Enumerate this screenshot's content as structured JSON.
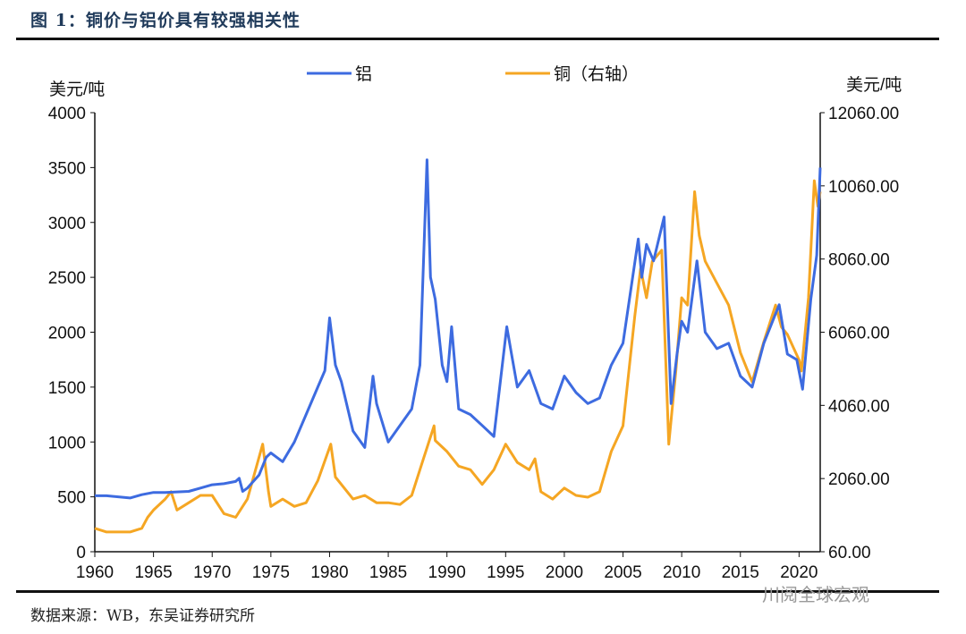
{
  "figure": {
    "title": "图 1：铜价与铝价具有较强相关性",
    "source": "数据来源：WB，东吴证券研究所",
    "watermark": "川阅全球宏观"
  },
  "chart_data": {
    "type": "line",
    "left_axis_label": "美元/吨",
    "right_axis_label": "美元/吨",
    "ylim_left": [
      0,
      4000
    ],
    "ylim_right": [
      60,
      12060
    ],
    "xlim": [
      1960,
      2021.8
    ],
    "x_ticks": [
      "1960",
      "1965",
      "1970",
      "1975",
      "1980",
      "1985",
      "1990",
      "1995",
      "2000",
      "2005",
      "2010",
      "2015",
      "2020"
    ],
    "y_ticks_left": [
      "0",
      "500",
      "1000",
      "1500",
      "2000",
      "2500",
      "3000",
      "3500",
      "4000"
    ],
    "y_ticks_right": [
      "60.00",
      "2060.00",
      "4060.00",
      "6060.00",
      "8060.00",
      "10060.00",
      "12060.00"
    ],
    "grid": false,
    "legend_position": "top",
    "series": [
      {
        "name": "铝",
        "axis": "left",
        "color": "#3d6be0",
        "points": [
          [
            1960,
            510
          ],
          [
            1961,
            510
          ],
          [
            1962,
            500
          ],
          [
            1963,
            490
          ],
          [
            1964,
            520
          ],
          [
            1965,
            540
          ],
          [
            1966,
            540
          ],
          [
            1967,
            545
          ],
          [
            1968,
            550
          ],
          [
            1969,
            580
          ],
          [
            1970,
            610
          ],
          [
            1971,
            620
          ],
          [
            1972,
            640
          ],
          [
            1972.3,
            670
          ],
          [
            1972.6,
            550
          ],
          [
            1973,
            580
          ],
          [
            1974,
            700
          ],
          [
            1974.6,
            860
          ],
          [
            1975,
            900
          ],
          [
            1976,
            820
          ],
          [
            1977,
            1000
          ],
          [
            1978,
            1250
          ],
          [
            1979,
            1500
          ],
          [
            1979.6,
            1650
          ],
          [
            1980,
            2130
          ],
          [
            1980.5,
            1700
          ],
          [
            1981,
            1550
          ],
          [
            1982,
            1100
          ],
          [
            1983,
            950
          ],
          [
            1983.7,
            1600
          ],
          [
            1984,
            1350
          ],
          [
            1985,
            1000
          ],
          [
            1986,
            1150
          ],
          [
            1987,
            1300
          ],
          [
            1987.7,
            1700
          ],
          [
            1988.3,
            3570
          ],
          [
            1988.6,
            2500
          ],
          [
            1989,
            2300
          ],
          [
            1989.6,
            1700
          ],
          [
            1990,
            1550
          ],
          [
            1990.4,
            2050
          ],
          [
            1991,
            1300
          ],
          [
            1992,
            1250
          ],
          [
            1993,
            1150
          ],
          [
            1994,
            1050
          ],
          [
            1995.1,
            2050
          ],
          [
            1995.5,
            1800
          ],
          [
            1996,
            1500
          ],
          [
            1997,
            1650
          ],
          [
            1998,
            1350
          ],
          [
            1999,
            1300
          ],
          [
            2000,
            1600
          ],
          [
            2001,
            1450
          ],
          [
            2002,
            1350
          ],
          [
            2003,
            1400
          ],
          [
            2004,
            1700
          ],
          [
            2005,
            1900
          ],
          [
            2006.3,
            2850
          ],
          [
            2006.6,
            2500
          ],
          [
            2007,
            2800
          ],
          [
            2007.6,
            2650
          ],
          [
            2008.5,
            3050
          ],
          [
            2009.1,
            1350
          ],
          [
            2009.6,
            1800
          ],
          [
            2010,
            2100
          ],
          [
            2010.5,
            2000
          ],
          [
            2011.3,
            2650
          ],
          [
            2012,
            2000
          ],
          [
            2013,
            1850
          ],
          [
            2014,
            1900
          ],
          [
            2015,
            1600
          ],
          [
            2016,
            1500
          ],
          [
            2017,
            1900
          ],
          [
            2018.3,
            2250
          ],
          [
            2019,
            1800
          ],
          [
            2019.8,
            1750
          ],
          [
            2020.3,
            1480
          ],
          [
            2021,
            2300
          ],
          [
            2021.5,
            2700
          ],
          [
            2021.8,
            3500
          ]
        ]
      },
      {
        "name": "铜（右轴）",
        "axis": "right",
        "color": "#f5a623",
        "points": [
          [
            1960,
            700
          ],
          [
            1961,
            600
          ],
          [
            1963,
            600
          ],
          [
            1964,
            700
          ],
          [
            1964.5,
            1000
          ],
          [
            1965,
            1200
          ],
          [
            1966,
            1500
          ],
          [
            1966.5,
            1700
          ],
          [
            1967,
            1200
          ],
          [
            1968,
            1400
          ],
          [
            1969,
            1600
          ],
          [
            1970,
            1600
          ],
          [
            1971,
            1100
          ],
          [
            1972,
            1000
          ],
          [
            1973,
            1500
          ],
          [
            1974.3,
            3000
          ],
          [
            1974.8,
            1700
          ],
          [
            1975,
            1300
          ],
          [
            1976,
            1500
          ],
          [
            1977,
            1300
          ],
          [
            1978,
            1400
          ],
          [
            1979,
            2000
          ],
          [
            1980.1,
            3000
          ],
          [
            1980.5,
            2100
          ],
          [
            1981,
            1900
          ],
          [
            1982,
            1500
          ],
          [
            1983,
            1600
          ],
          [
            1984,
            1400
          ],
          [
            1985,
            1400
          ],
          [
            1986,
            1350
          ],
          [
            1987,
            1600
          ],
          [
            1988,
            2600
          ],
          [
            1988.9,
            3500
          ],
          [
            1989,
            3100
          ],
          [
            1990,
            2800
          ],
          [
            1991,
            2400
          ],
          [
            1992,
            2300
          ],
          [
            1993,
            1900
          ],
          [
            1994,
            2300
          ],
          [
            1995,
            3000
          ],
          [
            1996,
            2500
          ],
          [
            1997,
            2300
          ],
          [
            1997.5,
            2600
          ],
          [
            1998,
            1700
          ],
          [
            1999,
            1500
          ],
          [
            2000,
            1800
          ],
          [
            2001,
            1600
          ],
          [
            2002,
            1550
          ],
          [
            2003,
            1700
          ],
          [
            2004,
            2800
          ],
          [
            2005,
            3500
          ],
          [
            2006,
            6500
          ],
          [
            2006.5,
            7800
          ],
          [
            2007,
            7000
          ],
          [
            2007.5,
            8000
          ],
          [
            2008.3,
            8300
          ],
          [
            2008.9,
            3000
          ],
          [
            2009.5,
            5000
          ],
          [
            2010,
            7000
          ],
          [
            2010.5,
            6800
          ],
          [
            2011.1,
            9900
          ],
          [
            2011.5,
            8700
          ],
          [
            2012,
            8000
          ],
          [
            2013,
            7400
          ],
          [
            2014,
            6800
          ],
          [
            2015,
            5500
          ],
          [
            2016,
            4700
          ],
          [
            2017,
            5800
          ],
          [
            2018,
            6800
          ],
          [
            2018.5,
            6200
          ],
          [
            2019,
            6000
          ],
          [
            2020,
            5300
          ],
          [
            2020.2,
            5000
          ],
          [
            2020.8,
            7000
          ],
          [
            2021.3,
            10200
          ],
          [
            2021.6,
            9500
          ],
          [
            2021.8,
            9900
          ]
        ]
      }
    ]
  }
}
